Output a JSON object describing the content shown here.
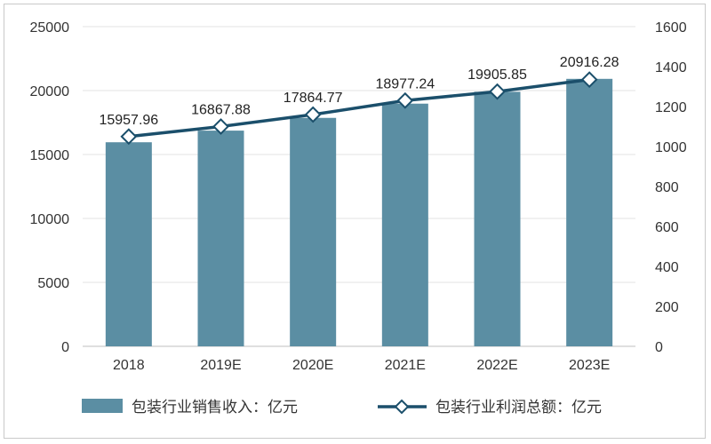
{
  "chart_data": {
    "type": "bar",
    "categories": [
      "2018",
      "2019E",
      "2020E",
      "2021E",
      "2022E",
      "2023E"
    ],
    "series": [
      {
        "name": "包装行业销售收入：亿元",
        "type": "bar",
        "axis": "left",
        "color": "#5b8ea3",
        "values": [
          15957.96,
          16867.88,
          17864.77,
          18977.24,
          19905.85,
          20916.28
        ],
        "labels": [
          "15957.96",
          "16867.88",
          "17864.77",
          "18977.24",
          "19905.85",
          "20916.28"
        ]
      },
      {
        "name": "包装行业利润总额：亿元",
        "type": "line",
        "axis": "right",
        "color": "#1b4f6b",
        "marker": "diamond",
        "values": [
          1050,
          1100,
          1160,
          1230,
          1275,
          1335
        ]
      }
    ],
    "y_left": {
      "min": 0,
      "max": 25000,
      "ticks": [
        "0",
        "5000",
        "10000",
        "15000",
        "20000",
        "25000"
      ]
    },
    "y_right": {
      "min": 0,
      "max": 1600,
      "ticks": [
        "0",
        "200",
        "400",
        "600",
        "800",
        "1000",
        "1200",
        "1400",
        "1600"
      ]
    },
    "grid": true,
    "legend_position": "bottom",
    "title": "",
    "xlabel": "",
    "ylabel": ""
  }
}
